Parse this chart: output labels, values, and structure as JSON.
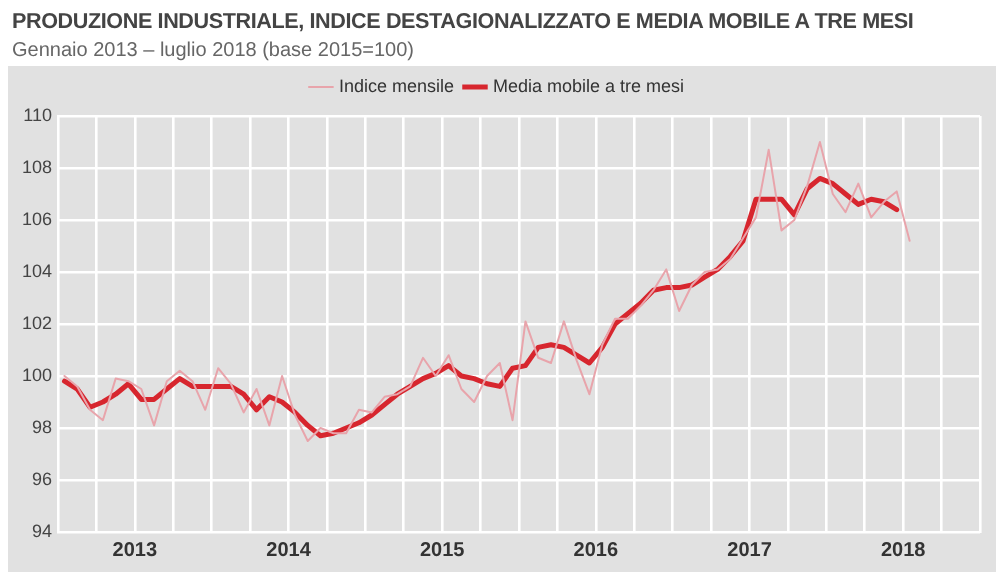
{
  "chart_data": {
    "type": "line",
    "title": "PRODUZIONE INDUSTRIALE, INDICE DESTAGIONALIZZATO E MEDIA MOBILE A TRE MESI",
    "subtitle": "Gennaio 2013 – luglio 2018 (base 2015=100)",
    "x": [
      2013.042,
      2013.125,
      2013.208,
      2013.292,
      2013.375,
      2013.458,
      2013.542,
      2013.625,
      2013.708,
      2013.792,
      2013.875,
      2013.958,
      2014.042,
      2014.125,
      2014.208,
      2014.292,
      2014.375,
      2014.458,
      2014.542,
      2014.625,
      2014.708,
      2014.792,
      2014.875,
      2014.958,
      2015.042,
      2015.125,
      2015.208,
      2015.292,
      2015.375,
      2015.458,
      2015.542,
      2015.625,
      2015.708,
      2015.792,
      2015.875,
      2015.958,
      2016.042,
      2016.125,
      2016.208,
      2016.292,
      2016.375,
      2016.458,
      2016.542,
      2016.625,
      2016.708,
      2016.792,
      2016.875,
      2016.958,
      2017.042,
      2017.125,
      2017.208,
      2017.292,
      2017.375,
      2017.458,
      2017.542,
      2017.625,
      2017.708,
      2017.792,
      2017.875,
      2017.958,
      2018.042,
      2018.125,
      2018.208,
      2018.292,
      2018.375,
      2018.458,
      2018.542
    ],
    "series": [
      {
        "name": "Indice mensile",
        "color": "#e8a4ab",
        "values": [
          100.0,
          99.6,
          98.7,
          98.3,
          99.9,
          99.8,
          99.5,
          98.1,
          99.8,
          100.2,
          99.8,
          98.7,
          100.3,
          99.7,
          98.6,
          99.5,
          98.1,
          100.0,
          98.5,
          97.5,
          98.0,
          97.8,
          97.8,
          98.7,
          98.6,
          99.2,
          99.3,
          99.6,
          100.7,
          100.0,
          100.8,
          99.5,
          99.0,
          100.0,
          100.5,
          98.3,
          102.1,
          100.7,
          100.5,
          102.1,
          100.6,
          99.3,
          101.2,
          102.2,
          102.2,
          102.7,
          103.3,
          104.1,
          102.5,
          103.5,
          104.0,
          104.1,
          104.5,
          105.3,
          106.1,
          108.7,
          105.6,
          106.0,
          107.3,
          109.0,
          107.0,
          106.3,
          107.4,
          106.1,
          106.7,
          107.1,
          105.2
        ]
      },
      {
        "name": "Media mobile a tre mesi",
        "color": "#d7262e",
        "values": [
          99.8,
          99.5,
          98.8,
          99.0,
          99.3,
          99.7,
          99.1,
          99.1,
          99.5,
          99.9,
          99.6,
          99.6,
          99.6,
          99.6,
          99.3,
          98.7,
          99.2,
          99.0,
          98.6,
          98.1,
          97.7,
          97.8,
          98.0,
          98.2,
          98.5,
          98.9,
          99.3,
          99.6,
          99.9,
          100.1,
          100.4,
          100.0,
          99.9,
          99.7,
          99.6,
          100.3,
          100.4,
          101.1,
          101.2,
          101.1,
          100.8,
          100.5,
          101.1,
          102.0,
          102.4,
          102.8,
          103.3,
          103.4,
          103.4,
          103.5,
          103.8,
          104.1,
          104.6,
          105.2,
          106.8,
          106.8,
          106.8,
          106.2,
          107.2,
          107.6,
          107.4,
          107.0,
          106.6,
          106.8,
          106.7,
          106.4,
          null
        ]
      }
    ],
    "xlim": [
      2013,
      2019
    ],
    "xticks": [
      {
        "value": 2013,
        "label": null
      },
      {
        "value": 2013.25,
        "label": null
      },
      {
        "value": 2013.5,
        "label": "2013"
      },
      {
        "value": 2013.75,
        "label": null
      },
      {
        "value": 2014,
        "label": null
      },
      {
        "value": 2014.25,
        "label": null
      },
      {
        "value": 2014.5,
        "label": "2014"
      },
      {
        "value": 2014.75,
        "label": null
      },
      {
        "value": 2015,
        "label": null
      },
      {
        "value": 2015.25,
        "label": null
      },
      {
        "value": 2015.5,
        "label": "2015"
      },
      {
        "value": 2015.75,
        "label": null
      },
      {
        "value": 2016,
        "label": null
      },
      {
        "value": 2016.25,
        "label": null
      },
      {
        "value": 2016.5,
        "label": "2016"
      },
      {
        "value": 2016.75,
        "label": null
      },
      {
        "value": 2017,
        "label": null
      },
      {
        "value": 2017.25,
        "label": null
      },
      {
        "value": 2017.5,
        "label": "2017"
      },
      {
        "value": 2017.75,
        "label": null
      },
      {
        "value": 2018,
        "label": null
      },
      {
        "value": 2018.25,
        "label": null
      },
      {
        "value": 2018.5,
        "label": "2018"
      },
      {
        "value": 2018.75,
        "label": null
      },
      {
        "value": 2019,
        "label": null
      }
    ],
    "ylim": [
      94,
      110
    ],
    "yticks": [
      94,
      96,
      98,
      100,
      102,
      104,
      106,
      108,
      110
    ],
    "grid": true,
    "legend": "top",
    "marker": "none",
    "line_style": "solid"
  }
}
